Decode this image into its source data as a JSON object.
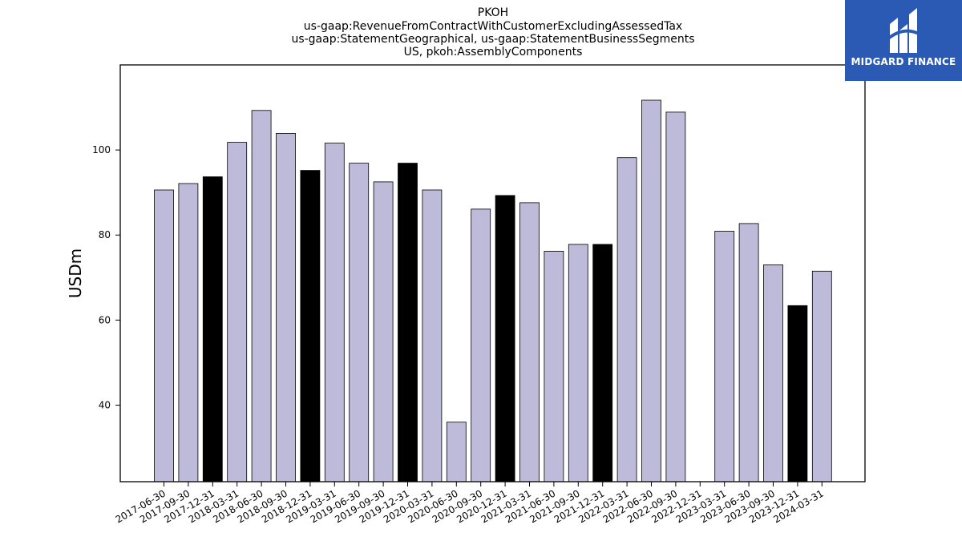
{
  "chart_data": {
    "type": "bar",
    "title_lines": [
      "PKOH",
      "us-gaap:RevenueFromContractWithCustomerExcludingAssessedTax",
      "us-gaap:StatementGeographical, us-gaap:StatementBusinessSegments",
      "US, pkoh:AssemblyComponents"
    ],
    "ylabel": "USDm",
    "xlabel": "",
    "ylim": [
      22,
      120
    ],
    "yticks": [
      40,
      60,
      80,
      100
    ],
    "categories": [
      "2017-06-30",
      "2017-09-30",
      "2017-12-31",
      "2018-03-31",
      "2018-06-30",
      "2018-09-30",
      "2018-12-31",
      "2019-03-31",
      "2019-06-30",
      "2019-09-30",
      "2019-12-31",
      "2020-03-31",
      "2020-06-30",
      "2020-09-30",
      "2020-12-31",
      "2021-03-31",
      "2021-06-30",
      "2021-09-30",
      "2021-12-31",
      "2022-03-31",
      "2022-06-30",
      "2022-09-30",
      "2022-12-31",
      "2023-03-31",
      "2023-06-30",
      "2023-09-30",
      "2023-12-31",
      "2024-03-31"
    ],
    "values": [
      90.6,
      92.1,
      93.7,
      101.8,
      109.3,
      103.9,
      95.2,
      101.6,
      96.9,
      92.5,
      96.9,
      90.6,
      36.0,
      86.1,
      89.3,
      87.6,
      76.2,
      77.8,
      77.8,
      98.2,
      111.7,
      108.9,
      null,
      80.9,
      82.7,
      73.0,
      63.4,
      71.5
    ],
    "highlighted_categories": [
      "2017-12-31",
      "2018-12-31",
      "2019-12-31",
      "2020-12-31",
      "2021-12-31",
      "2023-12-31"
    ],
    "colors": {
      "regular": "#bebad9",
      "highlight": "#000000",
      "edge": "#000000"
    },
    "grid": false,
    "legend": "none"
  },
  "logo": {
    "text": "MIDGARD FINANCE",
    "background": "#2a5ab3"
  }
}
